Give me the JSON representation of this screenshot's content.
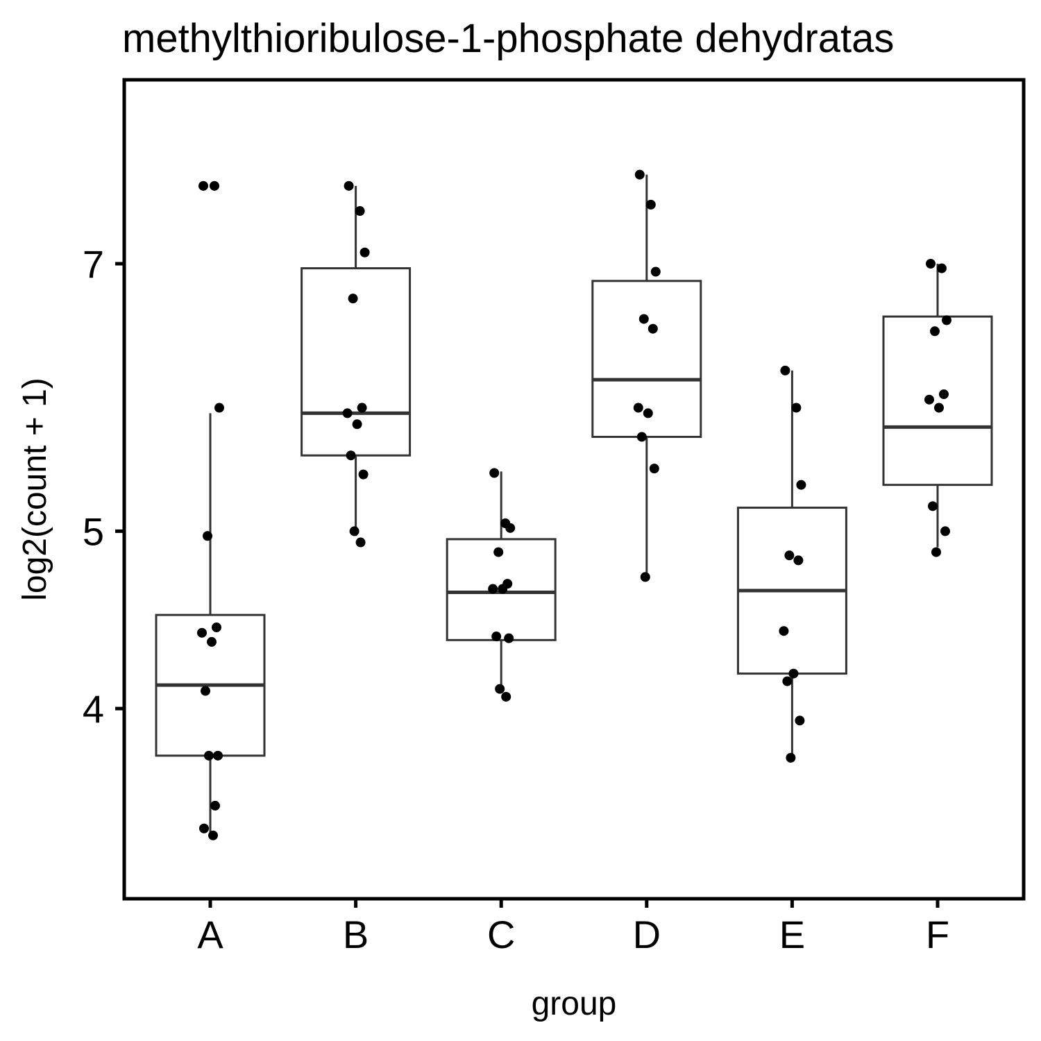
{
  "chart_data": {
    "type": "boxplot",
    "title": "methylthioribulose-1-phosphate dehydratas",
    "xlabel": "group",
    "ylabel": "log2(count + 1)",
    "y_scale": "log",
    "yticks": [
      4,
      5,
      7
    ],
    "ylim": [
      3.3,
      8.0
    ],
    "categories": [
      "A",
      "B",
      "C",
      "D",
      "E",
      "F"
    ],
    "boxes": [
      {
        "group": "A",
        "whisker_low": 3.41,
        "q1": 3.77,
        "median": 4.12,
        "q3": 4.5,
        "whisker_high": 5.8
      },
      {
        "group": "B",
        "whisker_low": 4.97,
        "q1": 5.5,
        "median": 5.8,
        "q3": 6.96,
        "whisker_high": 7.72
      },
      {
        "group": "C",
        "whisker_low": 4.08,
        "q1": 4.36,
        "median": 4.63,
        "q3": 4.95,
        "whisker_high": 5.39
      },
      {
        "group": "D",
        "whisker_low": 4.72,
        "q1": 5.63,
        "median": 6.05,
        "q3": 6.85,
        "whisker_high": 7.83
      },
      {
        "group": "E",
        "whisker_low": 3.75,
        "q1": 4.18,
        "median": 4.64,
        "q3": 5.15,
        "whisker_high": 6.12
      },
      {
        "group": "F",
        "whisker_low": 4.9,
        "q1": 5.3,
        "median": 5.7,
        "q3": 6.55,
        "whisker_high": 7.0
      }
    ],
    "points": [
      {
        "group": "A",
        "values": [
          7.72,
          7.72,
          5.84,
          4.97,
          4.43,
          4.4,
          4.35,
          4.09,
          3.77,
          3.77,
          3.54,
          3.44,
          3.41
        ]
      },
      {
        "group": "B",
        "values": [
          7.72,
          7.48,
          7.1,
          6.7,
          5.84,
          5.8,
          5.72,
          5.5,
          5.37,
          5.0,
          4.93
        ]
      },
      {
        "group": "C",
        "values": [
          5.38,
          5.05,
          5.02,
          4.87,
          4.68,
          4.65,
          4.65,
          4.38,
          4.37,
          4.1,
          4.06
        ]
      },
      {
        "group": "D",
        "values": [
          7.83,
          7.54,
          6.93,
          6.53,
          6.45,
          5.84,
          5.8,
          5.63,
          5.41,
          4.72
        ]
      },
      {
        "group": "E",
        "values": [
          6.12,
          5.84,
          5.3,
          4.85,
          4.82,
          4.41,
          4.18,
          4.14,
          3.94,
          3.76
        ]
      },
      {
        "group": "F",
        "values": [
          7.0,
          6.96,
          6.52,
          6.43,
          5.94,
          5.9,
          5.84,
          5.16,
          5.0,
          4.87
        ]
      }
    ],
    "grid": false,
    "legend": "none"
  }
}
